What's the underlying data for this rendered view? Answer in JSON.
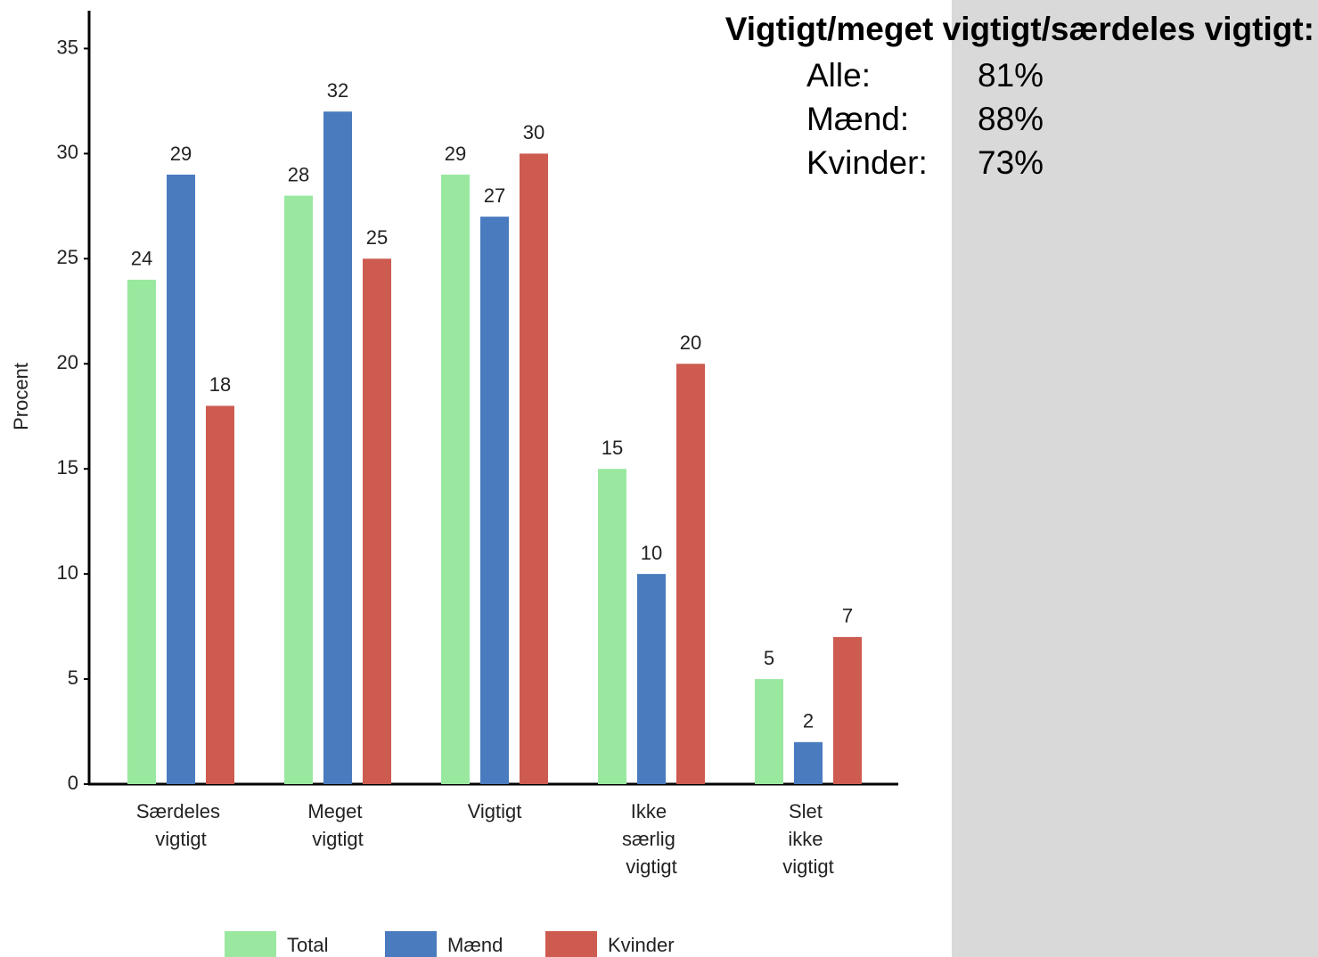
{
  "chart_data": {
    "type": "bar",
    "y_label": "Procent",
    "categories": [
      "Særdeles vigtigt",
      "Meget vigtigt",
      "Vigtigt",
      "Ikke særlig vigtigt",
      "Slet ikke vigtigt"
    ],
    "series": [
      {
        "name": "Total",
        "color": "#9ae8a0",
        "values": [
          24,
          28,
          29,
          15,
          5
        ]
      },
      {
        "name": "Mænd",
        "color": "#4a7bbf",
        "values": [
          29,
          32,
          27,
          10,
          2
        ]
      },
      {
        "name": "Kvinder",
        "color": "#cd5b50",
        "values": [
          18,
          25,
          30,
          20,
          7
        ]
      }
    ],
    "ylim": [
      0,
      36.8
    ],
    "yticks": [
      0,
      5,
      10,
      15,
      20,
      25,
      30,
      35
    ],
    "grid": false,
    "annotation": {
      "title": "Vigtigt/meget vigtigt/særdeles vigtigt:",
      "labels": [
        "Alle:",
        "Mænd:",
        "Kvinder:"
      ],
      "values": [
        81,
        88,
        73
      ],
      "value_labels": [
        "81%",
        "88%",
        "73%"
      ]
    }
  }
}
